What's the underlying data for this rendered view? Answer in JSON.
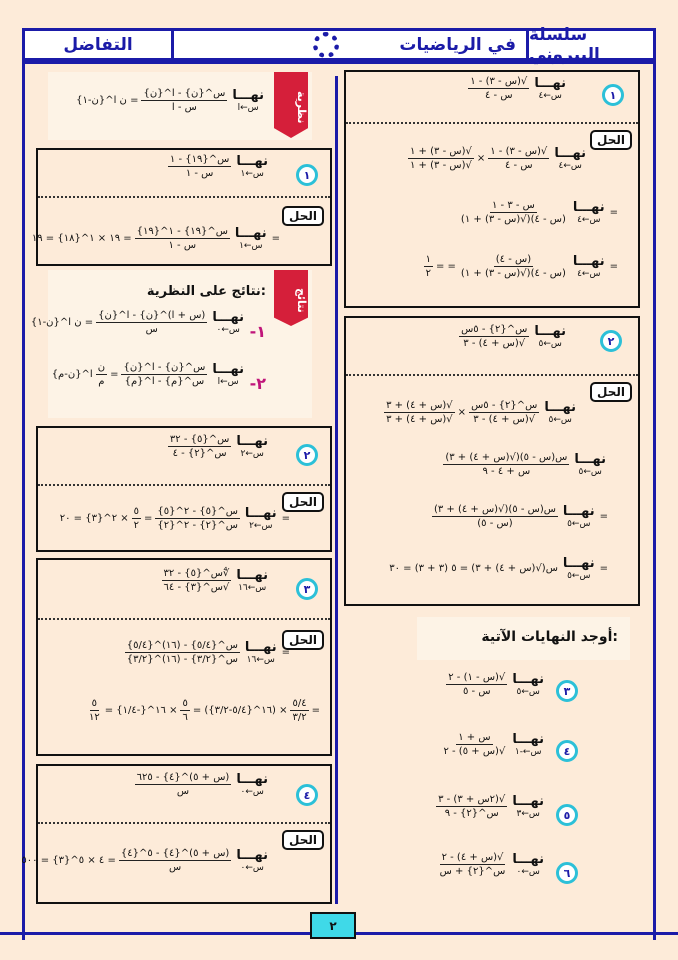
{
  "header": {
    "series": "سلسلة البيروني",
    "subject": "في الرياضيات",
    "topic": "التفاضل"
  },
  "solution_label": "الحل",
  "page_number": "٢",
  "colors": {
    "frame": "#1b1ba8",
    "ribbon": "#d51f3a",
    "number_ring": "#2cc0d8",
    "page_box": "#3fd9e8",
    "background": "#fdebd9"
  },
  "lim_word": "نهـــا",
  "theorem": {
    "ribbon": "نظرية",
    "formula": [
      {
        "lim": "س←ا"
      },
      {
        "f": [
          "س^{ن} - ا^{ن}",
          "س - ا"
        ]
      },
      "= ن ا^{ن-١}"
    ]
  },
  "results": {
    "ribbon": "نتائج",
    "title": "نتائج على النظرية:",
    "items": [
      {
        "label": "-١",
        "formula": [
          {
            "lim": "س←٠"
          },
          {
            "f": [
              "(س + ا)^{ن} - ا^{ن}",
              "س"
            ]
          },
          "= ن ا^{ن-١}"
        ]
      },
      {
        "label": "-٢",
        "formula": [
          {
            "lim": "س←ا"
          },
          {
            "f": [
              "س^{ن} - ا^{ن}",
              "س^{م} - ا^{م}"
            ]
          },
          "=",
          {
            "f": [
              "ن",
              "م"
            ]
          },
          "ا^{ن-م}"
        ]
      }
    ]
  },
  "left_examples": [
    {
      "number": "١",
      "problem": [
        {
          "lim": "س←١"
        },
        {
          "f": [
            "س^{١٩} - ١",
            "س - ١"
          ]
        }
      ],
      "solution": [
        [
          "=",
          {
            "lim": "س←١"
          },
          {
            "f": [
              "س^{١٩} - ١^{١٩}",
              "س - ١"
            ]
          },
          "= ١٩ × ١^{١٨} = ١٩"
        ]
      ]
    },
    {
      "number": "٢",
      "problem": [
        {
          "lim": "س←٢"
        },
        {
          "f": [
            "س^{٥} - ٣٢",
            "س^{٢} - ٤"
          ]
        }
      ],
      "solution": [
        [
          "=",
          {
            "lim": "س←٢"
          },
          {
            "f": [
              "س^{٥} - ٢^{٥}",
              "س^{٢} - ٢^{٢}"
            ]
          },
          "=",
          {
            "f": [
              "٥",
              "٢"
            ]
          },
          "× ٢^{٣} = ٢٠"
        ]
      ]
    },
    {
      "number": "٣",
      "problem": [
        {
          "lim": "س←١٦"
        },
        {
          "f": [
            "∜س^{٥} - ٣٢",
            "√س^{٣} - ٦٤"
          ]
        }
      ],
      "solution": [
        [
          "=",
          {
            "lim": "س←١٦"
          },
          {
            "f": [
              "س^{٥/٤} - (١٦)^{٥/٤}",
              "س^{٣/٢} - (١٦)^{٣/٢}"
            ]
          }
        ],
        [
          "=",
          {
            "f": [
              "٥/٤",
              "٣/٢"
            ]
          },
          "× (١٦^{٥/٤-٣/٢}) =",
          {
            "f": [
              "٥",
              "٦"
            ]
          },
          "× ١٦^{-١/٤} =",
          {
            "f": [
              "٥",
              "١٢"
            ]
          }
        ]
      ]
    },
    {
      "number": "٤",
      "problem": [
        {
          "lim": "س←٠"
        },
        {
          "f": [
            "(س + ٥)^{٤} - ٦٢٥",
            "س"
          ]
        }
      ],
      "solution": [
        [
          {
            "lim": "س←٠"
          },
          {
            "f": [
              "(س + ٥)^{٤} - ٥^{٤}",
              "س"
            ]
          },
          "= ٤ × ٥^{٣} = ٥٠٠"
        ]
      ]
    }
  ],
  "right_examples": [
    {
      "number": "١",
      "problem": [
        {
          "lim": "س←٤"
        },
        {
          "f": [
            "√(س - ٣) - ١",
            "س - ٤"
          ]
        }
      ],
      "solution": [
        [
          {
            "lim": "س←٤"
          },
          {
            "f": [
              "√(س - ٣) - ١",
              "س - ٤"
            ]
          },
          "×",
          {
            "f": [
              "√(س - ٣) + ١",
              "√(س - ٣) + ١"
            ]
          }
        ],
        [
          "=",
          {
            "lim": "س←٤"
          },
          {
            "f": [
              "س - ٣ - ١",
              "(س - ٤)(√(س - ٣) + ١)"
            ]
          }
        ],
        [
          "=",
          {
            "lim": "س←٤"
          },
          {
            "f": [
              "(س - ٤)",
              "(س - ٤)(√(س - ٣) + ١)"
            ]
          },
          "= =",
          {
            "f": [
              "١",
              "٢"
            ]
          }
        ]
      ]
    },
    {
      "number": "٢",
      "problem": [
        {
          "lim": "س←٥"
        },
        {
          "f": [
            "س^{٢} - ٥س",
            "√(س + ٤) - ٣"
          ]
        }
      ],
      "solution": [
        [
          {
            "lim": "س←٥"
          },
          {
            "f": [
              "س^{٢} - ٥س",
              "√(س + ٤) - ٣"
            ]
          },
          "×",
          {
            "f": [
              "√(س + ٤) + ٣",
              "√(س + ٤) + ٣"
            ]
          }
        ],
        [
          {
            "lim": "س←٥"
          },
          {
            "f": [
              "س(س - ٥)(√(س + ٤) + ٣)",
              "س + ٤ - ٩"
            ]
          }
        ],
        [
          "=",
          {
            "lim": "س←٥"
          },
          {
            "f": [
              "س(س - ٥)(√(س + ٤) + ٣)",
              "(س - ٥)"
            ]
          }
        ],
        [
          "=",
          {
            "lim": "س←٥"
          },
          "س(√(س + ٤) + ٣) = ٥ (٣ + ٣) = ٣٠"
        ]
      ]
    }
  ],
  "exercises": {
    "title": "أوجد النهايات الآتية:",
    "items": [
      {
        "number": "٣",
        "formula": [
          {
            "lim": "س←٥"
          },
          {
            "f": [
              "√(س - ١) - ٢",
              "س - ٥"
            ]
          }
        ]
      },
      {
        "number": "٤",
        "formula": [
          {
            "lim": "س←-١"
          },
          {
            "f": [
              "س + ١",
              "√(س + ٥) - ٢"
            ]
          }
        ]
      },
      {
        "number": "٥",
        "formula": [
          {
            "lim": "س←٣"
          },
          {
            "f": [
              "√(٢س + ٣) - ٣",
              "س^{٢} - ٩"
            ]
          }
        ]
      },
      {
        "number": "٦",
        "formula": [
          {
            "lim": "س←٠"
          },
          {
            "f": [
              "√(س + ٤) - ٢",
              "س^{٢} + س"
            ]
          }
        ]
      }
    ]
  }
}
